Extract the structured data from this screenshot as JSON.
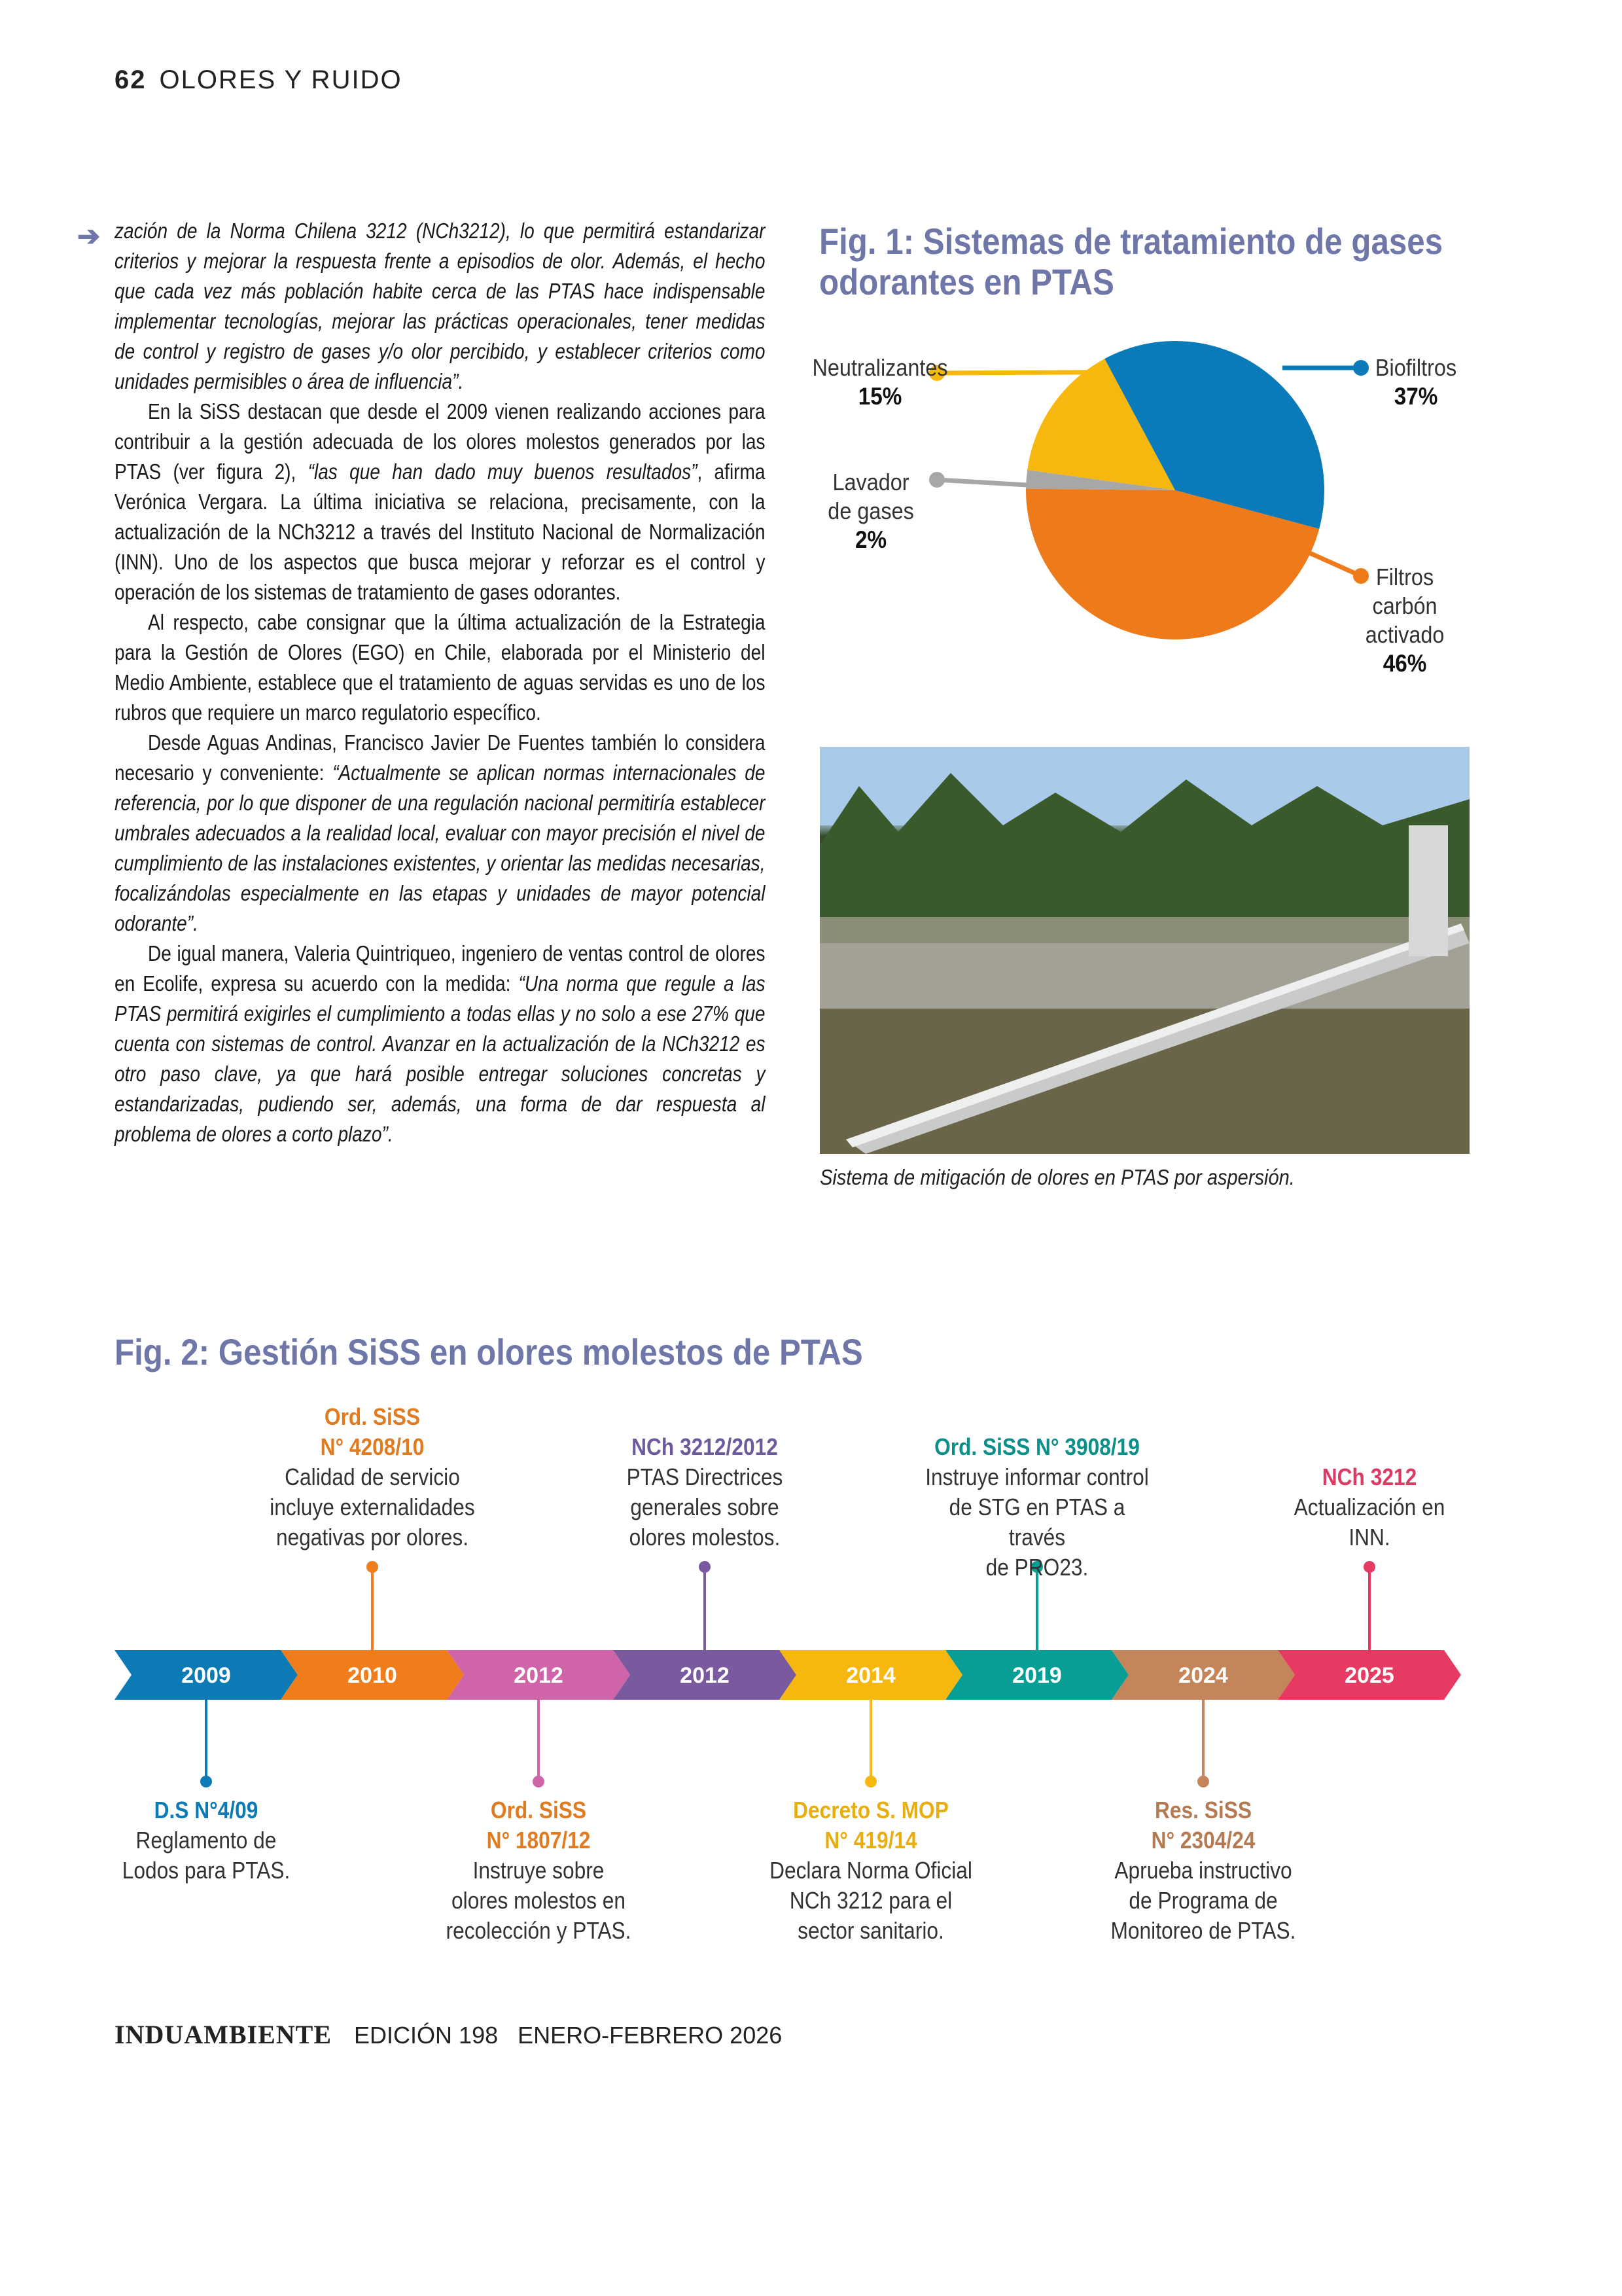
{
  "header": {
    "page_number": "62",
    "section": "OLORES Y RUIDO"
  },
  "article": {
    "p1": "zación de la Norma Chilena 3212 (NCh3212), lo que permitirá estandarizar criterios y mejorar la respuesta frente a episodios de olor. Además, el hecho que cada vez más población habite cerca de las PTAS hace indispensable implementar tecnologías, mejorar las prácticas operacionales, tener medidas de control y registro de gases y/o olor percibido, y establecer criterios como unidades permisibles o área de influencia”.",
    "p2a": "En la SiSS destacan que desde el 2009 vienen realizando acciones para contribuir a la gestión adecuada de los olores molestos generados por las PTAS (ver figura 2), ",
    "p2b": "“las que han dado muy buenos resultados”",
    "p2c": ", afirma Verónica Vergara. La última iniciativa se relaciona, precisamente, con la actualización de la NCh3212 a través del Instituto Nacional de Normalización (INN). Uno de los aspectos que busca mejorar y reforzar es el control y operación de los sistemas de tratamiento de gases odorantes.",
    "p3": "Al respecto, cabe consignar que la última actualización de la Estrategia para la Gestión de Olores (EGO) en Chile, elaborada por el Ministerio del Medio Ambiente, establece que el tratamiento de aguas servidas es uno de los rubros que requiere un marco regulatorio específico.",
    "p4a": "Desde Aguas Andinas, Francisco Javier De Fuentes también lo considera necesario y conveniente: ",
    "p4b": "“Actualmente se aplican normas internacionales de referencia, por lo que disponer de una regulación nacional permitiría establecer umbrales adecuados a la realidad local, evaluar con mayor precisión el nivel de cumplimiento de las instalaciones existentes, y orientar las medidas necesarias, focalizándolas especialmente en las etapas y unidades de mayor potencial odorante”.",
    "p5a": "De igual manera, Valeria Quintriqueo, ingeniero de ventas control de olores en Ecolife, expresa su acuerdo con la medida: ",
    "p5b": "“Una norma que regule a las PTAS permitirá exigirles el cumplimiento a todas ellas y no solo a ese 27% que cuenta con sistemas de control. Avanzar en la actualización de la NCh3212 es otro paso clave, ya que hará posible entregar soluciones concretas y estandarizadas, pudiendo ser, además, una forma de dar respuesta al problema de olores a corto plazo”."
  },
  "chart_data": {
    "type": "pie",
    "title": "Fig. 1: Sistemas de tratamiento de gases odorantes en PTAS",
    "slices": [
      {
        "label": "Filtros carbón activado",
        "value": 46,
        "display": "46%",
        "color": "#ee7a1a"
      },
      {
        "label": "Lavador de gases",
        "value": 2,
        "display": "2%",
        "color": "#a7a7a7"
      },
      {
        "label": "Neutralizantes",
        "value": 15,
        "display": "15%",
        "color": "#f6b70f"
      },
      {
        "label": "Biofiltros",
        "value": 37,
        "display": "37%",
        "color": "#0a7bb8"
      }
    ],
    "labels": {
      "neutralizantes": "Neutralizantes",
      "lavador_1": "Lavador",
      "lavador_2": "de gases",
      "biofiltros": "Biofiltros",
      "filtros_1": "Filtros",
      "filtros_2": "carbón",
      "filtros_3": "activado"
    }
  },
  "photo": {
    "caption": "Sistema de mitigación de olores en PTAS por aspersión."
  },
  "fig2": {
    "title": "Fig. 2: Gestión SiSS en olores molestos de PTAS",
    "events": [
      {
        "year": "2009",
        "color": "#0b7ab5",
        "text_color": "#0b7ab5",
        "side": "below",
        "title": "D.S N°4/09",
        "desc": "Reglamento de\nLodos para PTAS."
      },
      {
        "year": "2010",
        "color": "#ef7d1c",
        "text_color": "#e07b20",
        "side": "above",
        "title": "Ord. SiSS\nN° 4208/10",
        "desc": "Calidad de servicio\nincluye externalidades\nnegativas por olores."
      },
      {
        "year": "2012",
        "color": "#cf64a8",
        "text_color": "#e07b20",
        "side": "below",
        "title": "Ord. SiSS\nN° 1807/12",
        "desc": "Instruye sobre\nolores molestos en\nrecolección y PTAS."
      },
      {
        "year": "2012",
        "color": "#7a5a9f",
        "text_color": "#6d5a9c",
        "side": "above",
        "title": "NCh 3212/2012",
        "desc": "PTAS Directrices\ngenerales sobre\nolores molestos."
      },
      {
        "year": "2014",
        "color": "#f6b80f",
        "text_color": "#e8ae10",
        "side": "below",
        "title": "Decreto S. MOP\nN° 419/14",
        "desc": "Declara Norma Oficial\nNCh 3212 para el\nsector sanitario."
      },
      {
        "year": "2019",
        "color": "#079e95",
        "text_color": "#0b8f88",
        "side": "above",
        "title": "Ord. SiSS N° 3908/19",
        "desc": "Instruye informar control\nde STG en PTAS a través\nde PRO23."
      },
      {
        "year": "2024",
        "color": "#c5855a",
        "text_color": "#b57a52",
        "side": "below",
        "title": "Res. SiSS\nN° 2304/24",
        "desc": "Aprueba instructivo\nde Programa de\nMonitoreo de PTAS."
      },
      {
        "year": "2025",
        "color": "#e63a62",
        "text_color": "#dc3a63",
        "side": "above",
        "title": "NCh 3212",
        "desc": "Actualización en\nINN."
      }
    ]
  },
  "footer": {
    "logo": "INDUAMBIENTE",
    "edition": "EDICIÓN 198",
    "date": "ENERO-FEBRERO 2026"
  }
}
